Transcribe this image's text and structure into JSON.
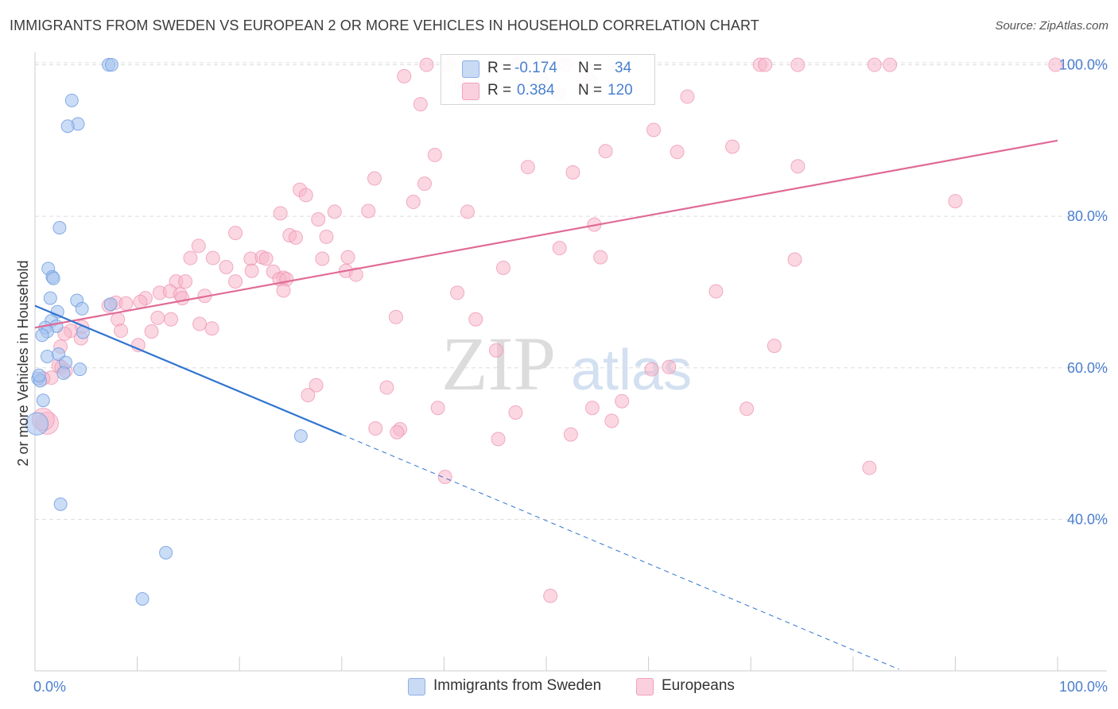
{
  "header": {
    "title": "IMMIGRANTS FROM SWEDEN VS EUROPEAN 2 OR MORE VEHICLES IN HOUSEHOLD CORRELATION CHART",
    "source": "Source: ZipAtlas.com"
  },
  "watermark": {
    "zip": "ZIP",
    "atlas": "atlas"
  },
  "legend": {
    "rows": [
      {
        "r_label": "R =",
        "r_value": "-0.174",
        "n_label": "N =",
        "n_value": "34",
        "color": "#a9c4f0"
      },
      {
        "r_label": "R =",
        "r_value": "0.384",
        "n_label": "N =",
        "n_value": "120",
        "color": "#f7b6cb"
      }
    ]
  },
  "bottom_legend": {
    "sweden": "Immigrants from Sweden",
    "europeans": "Europeans"
  },
  "colors": {
    "sweden_fill": "#a9c4f0",
    "sweden_stroke": "#6b9be0",
    "sweden_line": "#2f74d0",
    "europe_fill": "#f7b6cb",
    "europe_stroke": "#ec8fae",
    "europe_line": "#e06a96",
    "tick_text": "#4a7fd0",
    "grid": "#dddddd"
  },
  "chart_data": {
    "type": "scatter",
    "title": "IMMIGRANTS FROM SWEDEN VS EUROPEAN 2 OR MORE VEHICLES IN HOUSEHOLD CORRELATION CHART",
    "xlabel": "",
    "ylabel": "2 or more Vehicles in Household",
    "xlim": [
      0,
      100
    ],
    "ylim": [
      20,
      101
    ],
    "x_tick_labels": [
      "0.0%",
      "100.0%"
    ],
    "y_ticks": [
      40,
      60,
      80,
      100
    ],
    "y_tick_labels": [
      "40.0%",
      "60.0%",
      "80.0%",
      "100.0%"
    ],
    "grid": true,
    "legend_position": "bottom",
    "series": [
      {
        "name": "Immigrants from Sweden",
        "points": [
          [
            7.2,
            100
          ],
          [
            7.5,
            100
          ],
          [
            3.6,
            95.3
          ],
          [
            4.2,
            92.2
          ],
          [
            3.2,
            91.9
          ],
          [
            2.4,
            78.5
          ],
          [
            1.3,
            73.1
          ],
          [
            1.7,
            72.0
          ],
          [
            1.8,
            71.8
          ],
          [
            4.1,
            68.9
          ],
          [
            1.5,
            69.2
          ],
          [
            2.2,
            67.4
          ],
          [
            4.6,
            67.8
          ],
          [
            7.4,
            68.4
          ],
          [
            1.6,
            66.2
          ],
          [
            1.0,
            65.3
          ],
          [
            2.1,
            65.5
          ],
          [
            1.2,
            64.8
          ],
          [
            4.7,
            64.7
          ],
          [
            0.7,
            64.3
          ],
          [
            1.2,
            61.5
          ],
          [
            2.3,
            61.8
          ],
          [
            3.0,
            60.7
          ],
          [
            4.4,
            59.8
          ],
          [
            2.8,
            59.3
          ],
          [
            0.3,
            58.6
          ],
          [
            0.5,
            58.3
          ],
          [
            0.8,
            55.7
          ],
          [
            0.2,
            52.6
          ],
          [
            26.0,
            51.0
          ],
          [
            2.5,
            42.0
          ],
          [
            12.8,
            35.6
          ],
          [
            10.5,
            29.5
          ],
          [
            0.4,
            59.0
          ]
        ],
        "trend": {
          "x": [
            0,
            30
          ],
          "y": [
            68.2,
            51.2
          ]
        },
        "trend_extension": {
          "x": [
            30,
            84.5
          ],
          "y": [
            51.2,
            20.2
          ]
        }
      },
      {
        "name": "Europeans",
        "points": [
          [
            38.3,
            100
          ],
          [
            40.4,
            100
          ],
          [
            47.0,
            100
          ],
          [
            51.9,
            100
          ],
          [
            70.9,
            100
          ],
          [
            71.4,
            100
          ],
          [
            74.6,
            100
          ],
          [
            82.1,
            100
          ],
          [
            83.6,
            100
          ],
          [
            99.8,
            100
          ],
          [
            36.1,
            98.5
          ],
          [
            49.5,
            98.2
          ],
          [
            54.3,
            97.9
          ],
          [
            41.7,
            97.4
          ],
          [
            51.2,
            96.2
          ],
          [
            63.8,
            95.8
          ],
          [
            37.7,
            94.8
          ],
          [
            60.5,
            91.4
          ],
          [
            68.2,
            89.2
          ],
          [
            55.8,
            88.6
          ],
          [
            62.8,
            88.5
          ],
          [
            39.1,
            88.1
          ],
          [
            74.6,
            86.6
          ],
          [
            48.2,
            86.5
          ],
          [
            52.6,
            85.8
          ],
          [
            33.2,
            85.0
          ],
          [
            38.1,
            84.3
          ],
          [
            25.9,
            83.5
          ],
          [
            26.5,
            82.8
          ],
          [
            37.0,
            81.9
          ],
          [
            90.0,
            82.0
          ],
          [
            24.0,
            80.4
          ],
          [
            29.3,
            80.6
          ],
          [
            32.6,
            80.7
          ],
          [
            42.3,
            80.6
          ],
          [
            27.7,
            79.6
          ],
          [
            54.7,
            78.9
          ],
          [
            19.6,
            77.8
          ],
          [
            24.9,
            77.5
          ],
          [
            25.5,
            77.2
          ],
          [
            28.5,
            77.3
          ],
          [
            16.0,
            76.1
          ],
          [
            51.3,
            75.8
          ],
          [
            15.2,
            74.5
          ],
          [
            17.4,
            74.5
          ],
          [
            21.1,
            74.4
          ],
          [
            22.2,
            74.6
          ],
          [
            22.6,
            74.4
          ],
          [
            28.1,
            74.4
          ],
          [
            30.6,
            74.6
          ],
          [
            55.3,
            74.6
          ],
          [
            74.3,
            74.3
          ],
          [
            45.8,
            73.2
          ],
          [
            18.7,
            73.3
          ],
          [
            21.2,
            72.8
          ],
          [
            23.3,
            72.7
          ],
          [
            30.4,
            72.8
          ],
          [
            31.4,
            72.3
          ],
          [
            24.3,
            71.9
          ],
          [
            13.8,
            71.4
          ],
          [
            14.7,
            71.4
          ],
          [
            19.6,
            71.4
          ],
          [
            23.9,
            71.7
          ],
          [
            24.6,
            71.7
          ],
          [
            12.2,
            69.9
          ],
          [
            13.2,
            70.1
          ],
          [
            14.2,
            69.7
          ],
          [
            16.6,
            69.5
          ],
          [
            24.3,
            70.2
          ],
          [
            41.3,
            69.9
          ],
          [
            66.6,
            70.1
          ],
          [
            10.8,
            69.2
          ],
          [
            14.4,
            69.2
          ],
          [
            7.9,
            68.6
          ],
          [
            8.9,
            68.5
          ],
          [
            7.2,
            68.2
          ],
          [
            12.0,
            66.6
          ],
          [
            8.1,
            66.4
          ],
          [
            10.3,
            68.7
          ],
          [
            13.3,
            66.4
          ],
          [
            35.3,
            66.7
          ],
          [
            43.1,
            66.4
          ],
          [
            16.1,
            65.8
          ],
          [
            17.3,
            65.2
          ],
          [
            4.6,
            65.4
          ],
          [
            3.5,
            64.9
          ],
          [
            11.4,
            64.8
          ],
          [
            8.4,
            64.9
          ],
          [
            2.9,
            64.5
          ],
          [
            4.5,
            63.9
          ],
          [
            10.1,
            63.0
          ],
          [
            2.5,
            62.8
          ],
          [
            45.1,
            62.3
          ],
          [
            72.3,
            62.9
          ],
          [
            2.3,
            60.3
          ],
          [
            2.6,
            60.1
          ],
          [
            62.0,
            60.1
          ],
          [
            3.0,
            59.6
          ],
          [
            60.3,
            59.8
          ],
          [
            1.6,
            58.7
          ],
          [
            0.8,
            58.6
          ],
          [
            27.5,
            57.7
          ],
          [
            34.4,
            57.4
          ],
          [
            26.7,
            56.4
          ],
          [
            57.4,
            55.6
          ],
          [
            39.4,
            54.7
          ],
          [
            54.5,
            54.7
          ],
          [
            69.6,
            54.6
          ],
          [
            47.0,
            54.1
          ],
          [
            56.4,
            53.0
          ],
          [
            33.3,
            52.0
          ],
          [
            35.7,
            51.9
          ],
          [
            52.4,
            51.2
          ],
          [
            45.3,
            50.6
          ],
          [
            35.4,
            51.5
          ],
          [
            40.1,
            45.6
          ],
          [
            81.6,
            46.8
          ],
          [
            50.4,
            29.9
          ],
          [
            1.2,
            52.7
          ],
          [
            0.8,
            53.2
          ]
        ],
        "trend": {
          "x": [
            0,
            100
          ],
          "y": [
            65.3,
            90.0
          ]
        }
      }
    ]
  }
}
